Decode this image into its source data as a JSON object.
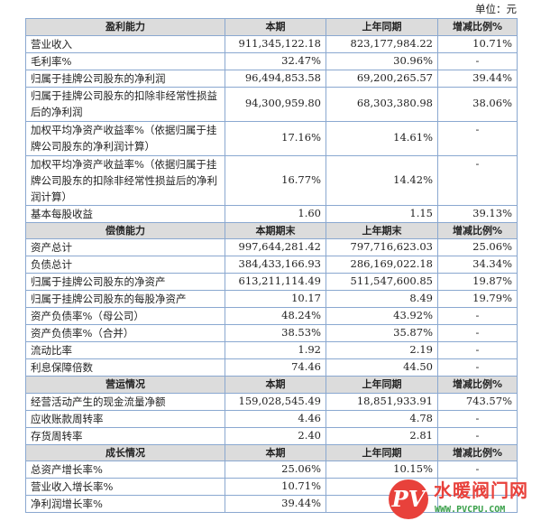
{
  "unit": "单位：元",
  "sections": [
    {
      "header": [
        "盈利能力",
        "本期",
        "上年同期",
        "增减比例%"
      ],
      "rows": [
        {
          "label": "营业收入",
          "cur": "911,345,122.18",
          "prev": "823,177,984.22",
          "chg": "10.71%"
        },
        {
          "label": "毛利率%",
          "cur": "32.47%",
          "prev": "30.96%",
          "chg": "-"
        },
        {
          "label": "归属于挂牌公司股东的净利润",
          "cur": "96,494,853.58",
          "prev": "69,200,265.57",
          "chg": "39.44%"
        },
        {
          "label": "归属于挂牌公司股东的扣除非经常性损益后的净利润",
          "cur": "94,300,959.80",
          "prev": "68,303,380.98",
          "chg": "38.06%"
        },
        {
          "label": "加权平均净资产收益率%（依据归属于挂牌公司股东的净利润计算）",
          "cur": "17.16%",
          "prev": "14.61%",
          "chg": "-"
        },
        {
          "label": "加权平均净资产收益率%（依据归属于挂牌公司股东的扣除非经常性损益后的净利润计算）",
          "cur": "16.77%",
          "prev": "14.42%",
          "chg": "-"
        },
        {
          "label": "基本每股收益",
          "cur": "1.60",
          "prev": "1.15",
          "chg": "39.13%"
        }
      ]
    },
    {
      "header": [
        "偿债能力",
        "本期期末",
        "上年期末",
        "增减比例%"
      ],
      "rows": [
        {
          "label": "资产总计",
          "cur": "997,644,281.42",
          "prev": "797,716,623.03",
          "chg": "25.06%"
        },
        {
          "label": "负债总计",
          "cur": "384,433,166.93",
          "prev": "286,169,022.18",
          "chg": "34.34%"
        },
        {
          "label": "归属于挂牌公司股东的净资产",
          "cur": "613,211,114.49",
          "prev": "511,547,600.85",
          "chg": "19.87%"
        },
        {
          "label": "归属于挂牌公司股东的每股净资产",
          "cur": "10.17",
          "prev": "8.49",
          "chg": "19.79%"
        },
        {
          "label": "资产负债率%（母公司）",
          "cur": "48.24%",
          "prev": "43.92%",
          "chg": "-"
        },
        {
          "label": "资产负债率%（合并）",
          "cur": "38.53%",
          "prev": "35.87%",
          "chg": "-"
        },
        {
          "label": "流动比率",
          "cur": "1.92",
          "prev": "2.19",
          "chg": "-"
        },
        {
          "label": "利息保障倍数",
          "cur": "74.46",
          "prev": "44.50",
          "chg": "-"
        }
      ]
    },
    {
      "header": [
        "营运情况",
        "本期",
        "上年同期",
        "增减比例%"
      ],
      "rows": [
        {
          "label": "经营活动产生的现金流量净额",
          "cur": "159,028,545.49",
          "prev": "18,851,933.91",
          "chg": "743.57%"
        },
        {
          "label": "应收账款周转率",
          "cur": "4.46",
          "prev": "4.78",
          "chg": "-"
        },
        {
          "label": "存货周转率",
          "cur": "2.40",
          "prev": "2.81",
          "chg": "-"
        }
      ]
    },
    {
      "header": [
        "成长情况",
        "本期",
        "上年同期",
        "增减比例%"
      ],
      "rows": [
        {
          "label": "总资产增长率%",
          "cur": "25.06%",
          "prev": "10.15%",
          "chg": "-"
        },
        {
          "label": "营业收入增长率%",
          "cur": "10.71%",
          "prev": "",
          "chg": ""
        },
        {
          "label": "净利润增长率%",
          "cur": "39.44%",
          "prev": "",
          "chg": ""
        }
      ]
    }
  ],
  "watermark": {
    "logo": "PV",
    "name": "水暖阀门网",
    "url": "WWW.PVCPU.COM",
    "color": "#e8413b"
  }
}
